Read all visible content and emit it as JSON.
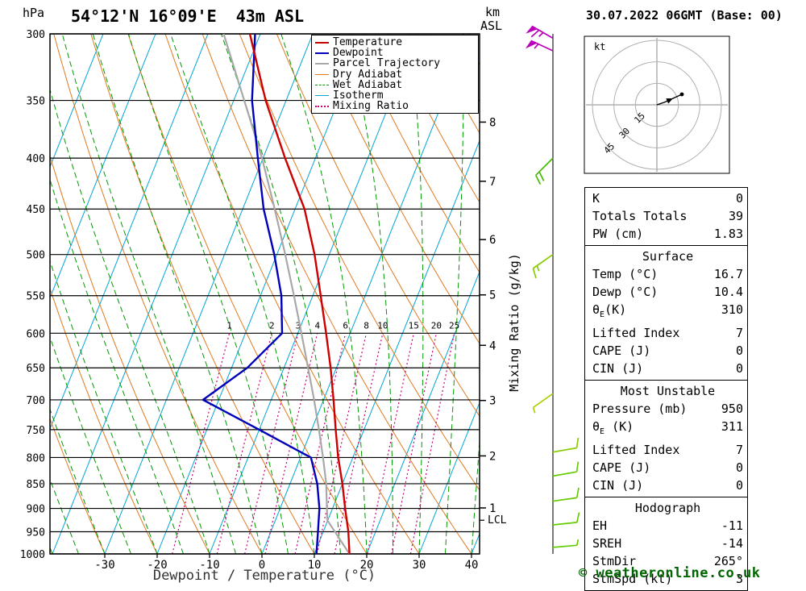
{
  "title": "54°12'N 16°09'E  43m ASL",
  "datetime": "30.07.2022 06GMT (Base: 00)",
  "copyright": "© weatheronline.co.uk",
  "units": {
    "pressure": "hPa",
    "height_km": "km",
    "height_asl": "ASL"
  },
  "axes": {
    "x_label": "Dewpoint / Temperature (°C)",
    "x_ticks": [
      -30,
      -20,
      -10,
      0,
      10,
      20,
      30,
      40
    ],
    "pressure_ticks": [
      300,
      350,
      400,
      450,
      500,
      550,
      600,
      650,
      700,
      750,
      800,
      850,
      900,
      950,
      1000
    ],
    "km_ticks": [
      {
        "km": 8,
        "p": 368
      },
      {
        "km": 7,
        "p": 422
      },
      {
        "km": 6,
        "p": 483
      },
      {
        "km": 5,
        "p": 549
      },
      {
        "km": 4,
        "p": 617
      },
      {
        "km": 3,
        "p": 701
      },
      {
        "km": 2,
        "p": 797
      },
      {
        "km": 1,
        "p": 899
      }
    ],
    "mixing_ratio_label": "Mixing Ratio (g/kg)",
    "lcl_label": "LCL"
  },
  "legend": [
    {
      "label": "Temperature",
      "color": "#cc0000",
      "style": "solid",
      "width": 2
    },
    {
      "label": "Dewpoint",
      "color": "#0000bb",
      "style": "solid",
      "width": 2
    },
    {
      "label": "Parcel Trajectory",
      "color": "#a8a8a8",
      "style": "solid",
      "width": 2
    },
    {
      "label": "Dry Adiabat",
      "color": "#e07a1f",
      "style": "solid",
      "width": 1
    },
    {
      "label": "Wet Adiabat",
      "color": "#009900",
      "style": "dashed",
      "width": 1
    },
    {
      "label": "Isotherm",
      "color": "#00a6d6",
      "style": "solid",
      "width": 1
    },
    {
      "label": "Mixing Ratio",
      "color": "#cc0077",
      "style": "dotted",
      "width": 2
    }
  ],
  "chart_data": {
    "type": "skewt_log_p",
    "pressure_range": [
      300,
      1000
    ],
    "temp_axis_range_at_1000hpa": [
      -40,
      41
    ],
    "colors": {
      "temperature": "#cc0000",
      "dewpoint": "#0000bb",
      "parcel": "#a8a8a8",
      "dry_adiabat": "#e07a1f",
      "wet_adiabat": "#009900",
      "isotherm": "#00a6d6",
      "mixing_ratio": "#cc0077"
    },
    "temperature_profile": [
      [
        1000,
        16.7
      ],
      [
        950,
        14.8
      ],
      [
        900,
        12.4
      ],
      [
        850,
        10.0
      ],
      [
        800,
        7.2
      ],
      [
        750,
        4.6
      ],
      [
        700,
        1.9
      ],
      [
        650,
        -1.1
      ],
      [
        600,
        -4.6
      ],
      [
        550,
        -8.5
      ],
      [
        500,
        -12.8
      ],
      [
        450,
        -18.2
      ],
      [
        400,
        -25.8
      ],
      [
        350,
        -33.9
      ],
      [
        300,
        -42.0
      ]
    ],
    "dewpoint_profile": [
      [
        1000,
        10.4
      ],
      [
        950,
        9.0
      ],
      [
        900,
        7.5
      ],
      [
        850,
        5.2
      ],
      [
        800,
        2.0
      ],
      [
        750,
        -10.0
      ],
      [
        700,
        -23.0
      ],
      [
        650,
        -17.0
      ],
      [
        600,
        -13.0
      ],
      [
        550,
        -16.0
      ],
      [
        500,
        -20.5
      ],
      [
        450,
        -26.0
      ],
      [
        400,
        -31.0
      ],
      [
        350,
        -36.5
      ],
      [
        300,
        -41.0
      ]
    ],
    "parcel_profile": [
      [
        1000,
        16.7
      ],
      [
        925,
        9.9
      ],
      [
        850,
        6.9
      ],
      [
        800,
        4.3
      ],
      [
        750,
        1.4
      ],
      [
        700,
        -1.8
      ],
      [
        650,
        -5.4
      ],
      [
        600,
        -9.3
      ],
      [
        550,
        -13.6
      ],
      [
        500,
        -18.4
      ],
      [
        450,
        -23.9
      ],
      [
        400,
        -30.2
      ],
      [
        350,
        -38.0
      ],
      [
        300,
        -47.0
      ]
    ],
    "mixing_ratio_lines": [
      1,
      2,
      3,
      4,
      6,
      8,
      10,
      15,
      20,
      25
    ],
    "lcl_pressure": 925,
    "wind_barbs": [
      {
        "pressure": 303,
        "speed": 65,
        "direction": 300,
        "color": "#bb00bb"
      },
      {
        "pressure": 312,
        "speed": 55,
        "direction": 295,
        "color": "#bb00bb"
      },
      {
        "pressure": 400,
        "speed": 20,
        "direction": 225,
        "color": "#44bb00"
      },
      {
        "pressure": 500,
        "speed": 15,
        "direction": 235,
        "color": "#88cc00"
      },
      {
        "pressure": 690,
        "speed": 5,
        "direction": 235,
        "color": "#aad400"
      },
      {
        "pressure": 790,
        "speed": 10,
        "direction": 80,
        "color": "#88cc00"
      },
      {
        "pressure": 835,
        "speed": 10,
        "direction": 80,
        "color": "#66cc00"
      },
      {
        "pressure": 885,
        "speed": 10,
        "direction": 82,
        "color": "#66cc00"
      },
      {
        "pressure": 935,
        "speed": 10,
        "direction": 84,
        "color": "#66cc00"
      },
      {
        "pressure": 985,
        "speed": 5,
        "direction": 85,
        "color": "#66cc00"
      }
    ]
  },
  "hodograph": {
    "unit_label": "kt",
    "ring_labels": [
      "15",
      "30",
      "45"
    ],
    "ring_radii_kt": [
      15,
      30,
      45
    ],
    "trace": [
      [
        0,
        0
      ],
      [
        9,
        -3
      ],
      [
        20,
        -8
      ],
      [
        31,
        -13
      ]
    ]
  },
  "stats": {
    "sections": [
      {
        "id": "indices",
        "rows": [
          {
            "label": "K",
            "value": "0"
          },
          {
            "label": "Totals Totals",
            "value": "39"
          },
          {
            "label": "PW (cm)",
            "value": "1.83"
          }
        ]
      },
      {
        "id": "surface",
        "header": "Surface",
        "rows": [
          {
            "label": "Temp (°C)",
            "value": "16.7"
          },
          {
            "label": "Dewp (°C)",
            "value": "10.4"
          },
          {
            "pre": "θ",
            "sub": "E",
            "post": "(K)",
            "value": "310"
          },
          {
            "label": "Lifted Index",
            "value": "7"
          },
          {
            "label": "CAPE (J)",
            "value": "0"
          },
          {
            "label": "CIN (J)",
            "value": "0"
          }
        ]
      },
      {
        "id": "most-unstable",
        "header": "Most Unstable",
        "rows": [
          {
            "label": "Pressure (mb)",
            "value": "950"
          },
          {
            "pre": "θ",
            "sub": "E",
            "post": " (K)",
            "value": "311"
          },
          {
            "label": "Lifted Index",
            "value": "7"
          },
          {
            "label": "CAPE (J)",
            "value": "0"
          },
          {
            "label": "CIN (J)",
            "value": "0"
          }
        ]
      },
      {
        "id": "hodograph",
        "header": "Hodograph",
        "rows": [
          {
            "label": "EH",
            "value": "-11"
          },
          {
            "label": "SREH",
            "value": "-14"
          },
          {
            "label": "StmDir",
            "value": "265°"
          },
          {
            "label": "StmSpd (kt)",
            "value": "3"
          }
        ]
      }
    ]
  }
}
